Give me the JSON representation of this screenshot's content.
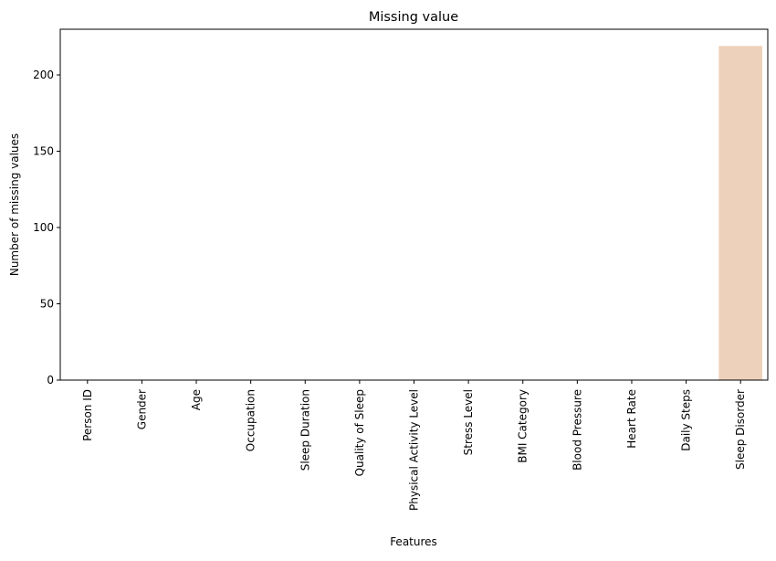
{
  "chart_data": {
    "type": "bar",
    "title": "Missing value",
    "xlabel": "Features",
    "ylabel": "Number of missing values",
    "categories": [
      "Person ID",
      "Gender",
      "Age",
      "Occupation",
      "Sleep Duration",
      "Quality of Sleep",
      "Physical Activity Level",
      "Stress Level",
      "BMI Category",
      "Blood Pressure",
      "Heart Rate",
      "Daily Steps",
      "Sleep Disorder"
    ],
    "values": [
      0,
      0,
      0,
      0,
      0,
      0,
      0,
      0,
      0,
      0,
      0,
      0,
      219
    ],
    "ylim": [
      0,
      229.95
    ],
    "yticks": [
      0,
      50,
      100,
      150,
      200
    ],
    "grid": false,
    "colors": [
      "#3b0f70",
      "#4a1079",
      "#5a167e",
      "#6a1c81",
      "#7b2382",
      "#8c2981",
      "#9d2e7f",
      "#ae347b",
      "#c03a76",
      "#d2436f",
      "#e34e65",
      "#f0605d",
      "#eed1bb"
    ]
  }
}
